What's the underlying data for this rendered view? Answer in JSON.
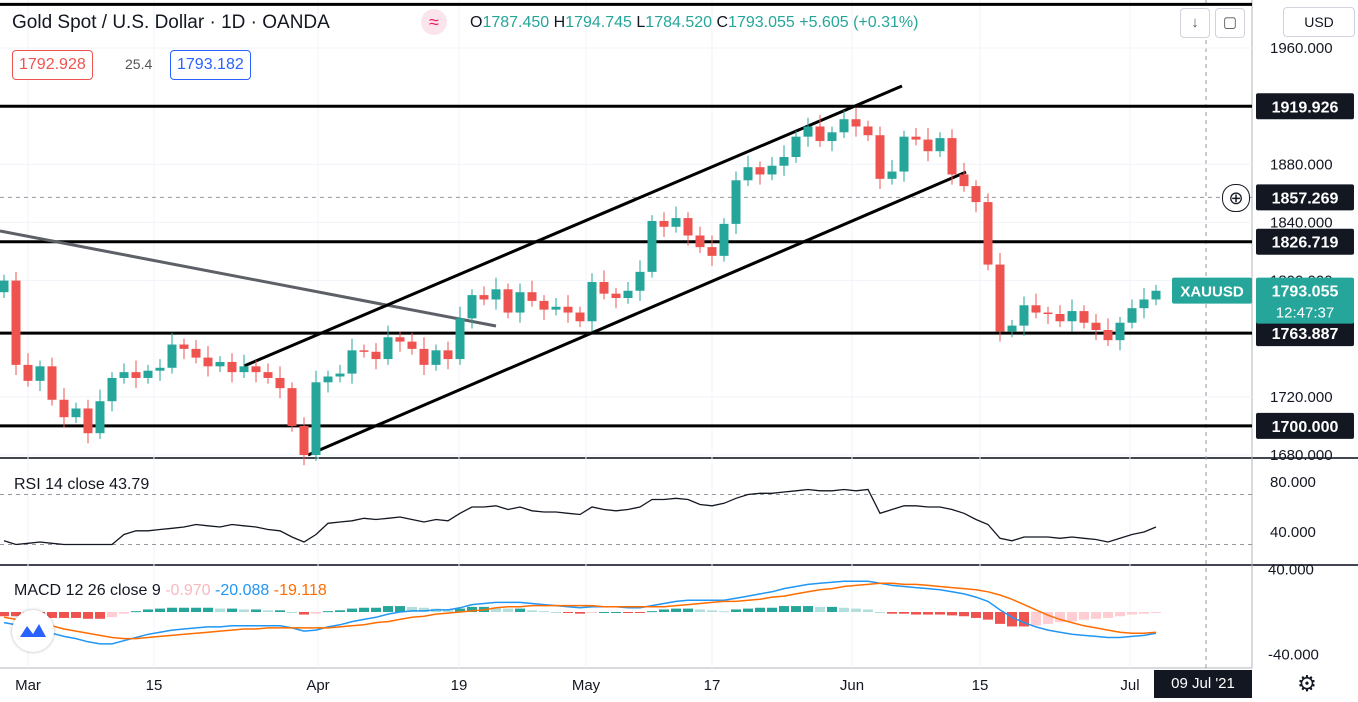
{
  "header": {
    "symbol_title": "Gold Spot / U.S. Dollar · 1D · OANDA",
    "open_label": "O",
    "open": "1787.450",
    "high_label": "H",
    "high": "1794.745",
    "low_label": "L",
    "low": "1784.520",
    "close_label": "C",
    "close": "1793.055",
    "change": "+5.605 (+0.31%)",
    "sell_price": "1792.928",
    "spread": "25.4",
    "buy_price": "1793.182",
    "currency_button": "USD",
    "wave_icon": "wave-icon",
    "download_icon": "arrow-down-icon",
    "fullscreen_icon": "square-icon"
  },
  "rsi_legend": {
    "name": "RSI 14 close",
    "value": "43.79"
  },
  "macd_legend": {
    "name": "MACD 12 26 close 9",
    "hist": "-0.970",
    "macd": "-20.088",
    "signal": "-19.118"
  },
  "colors": {
    "up": "#26a69a",
    "down": "#ef5350",
    "macd": "#2196f3",
    "signal": "#ff6d00",
    "hist_down_light": "#ffcdd2",
    "hist_up_light": "#b2dfdb"
  },
  "footer": {
    "date_badge": "09 Jul '21",
    "settings_icon": "gear-icon"
  },
  "chart_data": [
    {
      "type": "candlestick",
      "title": "Gold Spot / U.S. Dollar · 1D · OANDA",
      "x_tick_labels": [
        "Mar",
        "15",
        "Apr",
        "19",
        "May",
        "17",
        "Jun",
        "15",
        "Jul"
      ],
      "y_tick_labels": [
        "1960.000",
        "1880.000",
        "1840.000",
        "1800.000",
        "1720.000",
        "1700.000",
        "1680.000"
      ],
      "ylim": [
        1675,
        1995
      ],
      "horizontal_levels": [
        {
          "label": "1919.926",
          "value": 1919.926
        },
        {
          "label": "1826.719",
          "value": 1826.719
        },
        {
          "label": "1763.887",
          "value": 1763.887
        },
        {
          "label": "1700.000",
          "value": 1700.0
        },
        {
          "label": "1990",
          "value": 1990
        }
      ],
      "crosshair_label": "1857.269",
      "last_price": {
        "symbol": "XAUUSD",
        "price": "1793.055",
        "countdown": "12:47:37"
      },
      "closes": [
        1800,
        1742,
        1731,
        1741,
        1718,
        1706,
        1712,
        1695,
        1717,
        1733,
        1737,
        1733,
        1738,
        1740,
        1756,
        1753,
        1747,
        1741,
        1744,
        1737,
        1741,
        1737,
        1733,
        1726,
        1700,
        1680,
        1730,
        1734,
        1736,
        1752,
        1751,
        1746,
        1761,
        1758,
        1753,
        1742,
        1752,
        1746,
        1774,
        1790,
        1787,
        1794,
        1778,
        1792,
        1786,
        1780,
        1782,
        1778,
        1772,
        1799,
        1791,
        1788,
        1793,
        1806,
        1841,
        1837,
        1843,
        1831,
        1823,
        1817,
        1839,
        1869,
        1878,
        1873,
        1879,
        1885,
        1899,
        1906,
        1896,
        1902,
        1911,
        1906,
        1900,
        1870,
        1875,
        1899,
        1897,
        1889,
        1898,
        1873,
        1865,
        1854,
        1811,
        1765,
        1769,
        1783,
        1778,
        1777,
        1772,
        1779,
        1771,
        1766,
        1759,
        1771,
        1781,
        1787,
        1793
      ]
    },
    {
      "type": "line",
      "title": "RSI 14 close",
      "y_tick_labels": [
        "80.000",
        "40.000"
      ],
      "ylim": [
        28,
        80
      ],
      "guide_levels": [
        70,
        30
      ],
      "values": [
        33,
        30,
        31,
        32,
        31,
        30,
        30,
        30,
        30,
        30,
        38,
        41,
        41,
        42,
        43,
        44,
        46,
        45,
        44,
        46,
        45,
        44,
        42,
        41,
        36,
        32,
        38,
        47,
        48,
        49,
        51,
        50,
        51,
        52,
        50,
        48,
        50,
        49,
        55,
        60,
        60,
        61,
        58,
        60,
        57,
        56,
        56,
        55,
        54,
        60,
        58,
        57,
        58,
        60,
        66,
        66,
        67,
        66,
        62,
        61,
        63,
        67,
        70,
        71,
        71,
        72,
        73,
        74,
        73,
        73,
        74,
        73,
        74,
        55,
        58,
        61,
        61,
        60,
        60,
        58,
        55,
        50,
        46,
        35,
        33,
        36,
        36,
        36,
        35,
        36,
        35,
        34,
        32,
        35,
        38,
        40,
        44
      ]
    },
    {
      "type": "line",
      "title": "MACD 12 26 close 9",
      "y_tick_labels": [
        "40.000",
        "-40.000"
      ],
      "ylim": [
        -42,
        42
      ],
      "series": [
        {
          "name": "MACD",
          "values": [
            -10,
            -12,
            -14,
            -17,
            -20,
            -23,
            -25,
            -28,
            -30,
            -30,
            -27,
            -24,
            -21,
            -19,
            -17,
            -16,
            -15,
            -14,
            -14,
            -13,
            -13,
            -13,
            -13,
            -13,
            -15,
            -18,
            -17,
            -14,
            -12,
            -9,
            -7,
            -5,
            -2,
            0,
            1,
            1,
            2,
            2,
            4,
            7,
            8,
            9,
            9,
            9,
            8,
            7,
            6,
            5,
            4,
            5,
            5,
            5,
            4,
            4,
            6,
            8,
            10,
            11,
            11,
            11,
            11,
            13,
            15,
            17,
            19,
            22,
            24,
            26,
            27,
            28,
            29,
            29,
            29,
            27,
            25,
            24,
            23,
            22,
            21,
            19,
            17,
            14,
            10,
            2,
            -5,
            -10,
            -14,
            -17,
            -19,
            -21,
            -22,
            -23,
            -24,
            -24,
            -23,
            -22,
            -20
          ]
        },
        {
          "name": "Signal",
          "values": [
            -5,
            -7,
            -9,
            -11,
            -13,
            -16,
            -18,
            -20,
            -22,
            -24,
            -25,
            -25,
            -24,
            -23,
            -22,
            -21,
            -20,
            -19,
            -18,
            -17,
            -16,
            -16,
            -15,
            -15,
            -15,
            -15,
            -15,
            -15,
            -14,
            -13,
            -12,
            -10,
            -9,
            -7,
            -5,
            -4,
            -2,
            -1,
            0,
            1,
            2,
            4,
            5,
            5,
            6,
            6,
            6,
            6,
            6,
            6,
            5,
            5,
            5,
            5,
            5,
            5,
            6,
            7,
            8,
            9,
            10,
            10,
            11,
            12,
            14,
            15,
            17,
            19,
            21,
            22,
            24,
            25,
            26,
            27,
            27,
            26,
            26,
            25,
            24,
            23,
            22,
            21,
            19,
            16,
            12,
            7,
            2,
            -3,
            -7,
            -10,
            -13,
            -15,
            -17,
            -19,
            -20,
            -20,
            -19
          ]
        }
      ]
    }
  ]
}
